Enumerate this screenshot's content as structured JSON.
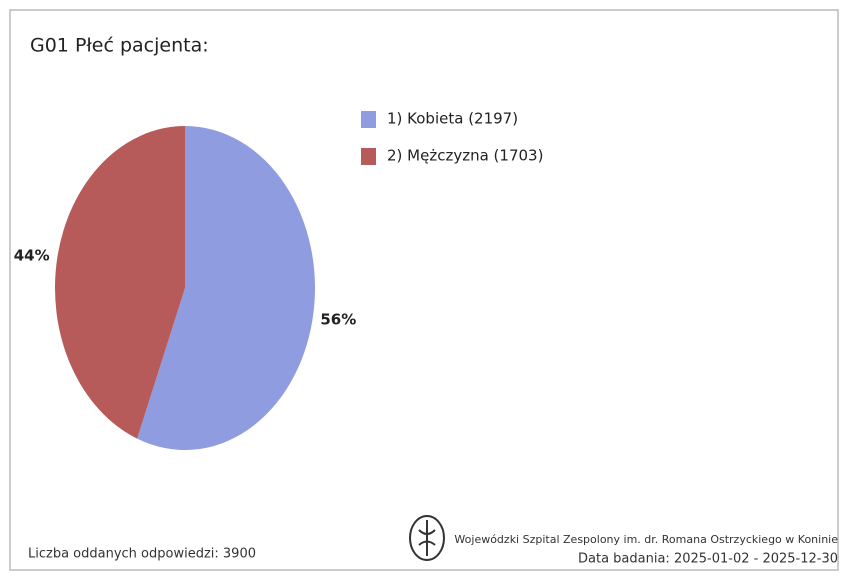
{
  "chart_data": {
    "type": "pie",
    "title": "G01 Płeć pacjenta:",
    "categories": [
      "1) Kobieta (2197)",
      "2) Mężczyzna (1703)"
    ],
    "values": [
      56,
      44
    ],
    "value_labels": [
      "56%",
      "44%"
    ],
    "colors": [
      "#8f9ce0",
      "#b65a5a"
    ],
    "legend": "right",
    "note": "Liczba oddanych odpowiedzi: 3900",
    "source": "Wojewódzki Szpital Zespolony im. dr. Romana Ostrzyckiego w Koninie",
    "date_range": "Data badania: 2025-01-02 - 2025-12-30"
  }
}
